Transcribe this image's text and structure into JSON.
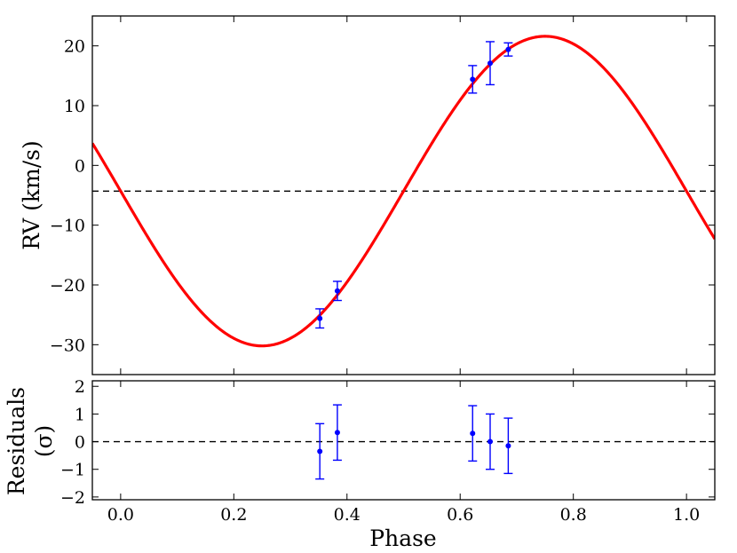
{
  "chart_data": [
    {
      "type": "line",
      "panel": "rv",
      "ylabel": "RV (km/s)",
      "xlim": [
        -0.05,
        1.05
      ],
      "ylim": [
        -35,
        25
      ],
      "yticks": [
        -30,
        -20,
        -10,
        0,
        10,
        20
      ],
      "yticklabels": [
        "−30",
        "−20",
        "−10",
        "0",
        "10",
        "20"
      ],
      "model": {
        "gamma": 21.6,
        "amplitude": -25.9,
        "color": "#ff0000"
      },
      "offset": {
        "y": -4.3,
        "style": "dashed"
      },
      "series": [
        {
          "x": [
            0.352,
            0.383,
            0.622,
            0.653,
            0.685
          ],
          "y": [
            -25.6,
            -21.0,
            14.4,
            17.1,
            19.4
          ],
          "yerr": [
            1.6,
            1.6,
            2.3,
            3.6,
            1.1
          ],
          "color": "#0000ff"
        }
      ]
    },
    {
      "type": "scatter",
      "panel": "residuals",
      "xlabel": "Phase",
      "ylabel": "Residuals",
      "ylabel2": "(σ)",
      "xlim": [
        -0.05,
        1.05
      ],
      "ylim": [
        -2.1,
        2.2
      ],
      "xticks": [
        0.0,
        0.2,
        0.4,
        0.6,
        0.8,
        1.0
      ],
      "xticklabels": [
        "0.0",
        "0.2",
        "0.4",
        "0.6",
        "0.8",
        "1.0"
      ],
      "yticks": [
        -2,
        -1,
        0,
        1,
        2
      ],
      "yticklabels": [
        "−2",
        "−1",
        "0",
        "1",
        "2"
      ],
      "zero_line": {
        "y": 0,
        "style": "dashed"
      },
      "series": [
        {
          "x": [
            0.352,
            0.383,
            0.622,
            0.653,
            0.685
          ],
          "y": [
            -0.35,
            0.33,
            0.3,
            0.0,
            -0.15
          ],
          "yerr": [
            1.0,
            1.0,
            1.0,
            1.0,
            1.0
          ],
          "color": "#0000ff"
        }
      ]
    }
  ]
}
